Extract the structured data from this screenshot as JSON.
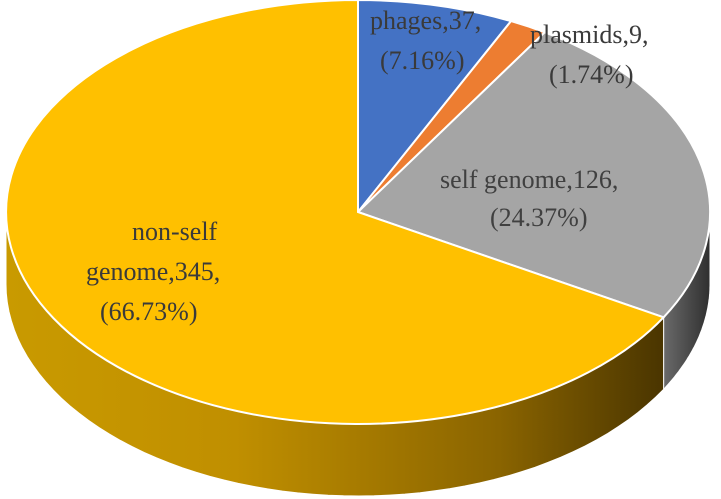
{
  "chart_data": {
    "type": "pie",
    "style": "3d",
    "title": "",
    "slices": [
      {
        "name": "phages",
        "value": 37,
        "percent": 7.16,
        "color": "#4472C4",
        "label_line1": "phages,37,",
        "label_line2": "(7.16%)"
      },
      {
        "name": "plasmids",
        "value": 9,
        "percent": 1.74,
        "color": "#ED7D31",
        "label_line1": "plasmids,9,",
        "label_line2": "(1.74%)"
      },
      {
        "name": "self genome",
        "value": 126,
        "percent": 24.37,
        "color": "#A5A5A5",
        "label_line1": "self genome,126,",
        "label_line2": "(24.37%)"
      },
      {
        "name": "non-self genome",
        "value": 345,
        "percent": 66.73,
        "color": "#FFC000",
        "label_line1": "non-self",
        "label_line2": "genome,345,",
        "label_line3": "(66.73%)"
      }
    ]
  }
}
